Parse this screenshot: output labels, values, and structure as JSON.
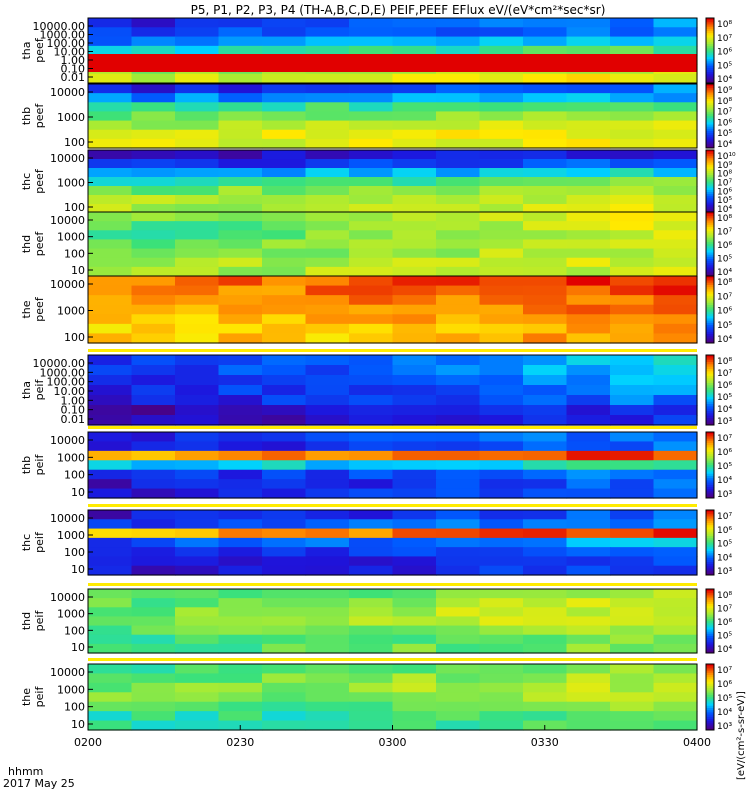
{
  "title": "P5, P1, P2, P3, P4 (TH-A,B,C,D,E) PEIF,PEEF EFlux eV/(eV*cm²*sec*sr)",
  "time_axis": {
    "ticks": [
      "0200",
      "0230",
      "0300",
      "0330",
      "0400"
    ],
    "label_line1": "hhmm",
    "label_line2": "2017 May 25"
  },
  "colorbar_unit": "[eV/(cm²-s-sr-eV)]",
  "chart_data": [
    {
      "type": "heatmap",
      "probe": "tha",
      "species": "peef",
      "ylabel": "tha\npeef",
      "yticks": [
        "10000.00",
        "1000.00",
        "100.00",
        "10.00",
        "1.00",
        "0.10",
        "0.01"
      ],
      "colorbar_ticks": [
        "10⁸",
        "10⁷",
        "10⁶",
        "10⁵",
        "10⁴"
      ],
      "colormap": "rainbow"
    },
    {
      "type": "heatmap",
      "probe": "thb",
      "species": "peef",
      "ylabel": "thb\npeef",
      "yticks": [
        "10000",
        "1000",
        "100"
      ],
      "colorbar_ticks": [
        "10⁹",
        "10⁸",
        "10⁷",
        "10⁶",
        "10⁵",
        "10⁴"
      ],
      "colormap": "rainbow"
    },
    {
      "type": "heatmap",
      "probe": "thc",
      "species": "peef",
      "ylabel": "thc\npeef",
      "yticks": [
        "10000",
        "1000",
        "100"
      ],
      "colorbar_ticks": [
        "10¹⁰",
        "10⁹",
        "10⁸",
        "10⁷",
        "10⁶",
        "10⁵",
        "10⁴"
      ],
      "colormap": "rainbow"
    },
    {
      "type": "heatmap",
      "probe": "thd",
      "species": "peef",
      "ylabel": "thd\npeef",
      "yticks": [
        "10000",
        "1000",
        "100",
        "10"
      ],
      "colorbar_ticks": [
        "10⁸",
        "10⁷",
        "10⁶",
        "10⁵",
        "10⁴"
      ],
      "colormap": "rainbow"
    },
    {
      "type": "heatmap",
      "probe": "the",
      "species": "peef",
      "ylabel": "the\npeef",
      "yticks": [
        "10000",
        "1000",
        "100"
      ],
      "colorbar_ticks": [
        "10⁸",
        "10⁷",
        "10⁶",
        "10⁵",
        "10⁴"
      ],
      "colormap": "rainbow"
    },
    {
      "type": "heatmap",
      "probe": "tha",
      "species": "peif",
      "ylabel": "tha\npeif",
      "yticks": [
        "10000.00",
        "1000.00",
        "100.00",
        "10.00",
        "1.00",
        "0.10",
        "0.01"
      ],
      "colorbar_ticks": [
        "10⁸",
        "10⁷",
        "10⁶",
        "10⁵",
        "10⁴",
        "10³"
      ],
      "colormap": "rainbow"
    },
    {
      "type": "heatmap",
      "probe": "thb",
      "species": "peif",
      "ylabel": "thb\npeif",
      "yticks": [
        "10000",
        "1000",
        "100",
        "10"
      ],
      "colorbar_ticks": [
        "10⁷",
        "10⁶",
        "10⁵",
        "10⁴",
        "10³"
      ],
      "colormap": "rainbow"
    },
    {
      "type": "heatmap",
      "probe": "thc",
      "species": "peif",
      "ylabel": "thc\npeif",
      "yticks": [
        "10000",
        "1000",
        "100",
        "10"
      ],
      "colorbar_ticks": [
        "10⁷",
        "10⁶",
        "10⁵",
        "10⁴",
        "10³"
      ],
      "colormap": "rainbow"
    },
    {
      "type": "heatmap",
      "probe": "thd",
      "species": "peif",
      "ylabel": "thd\npeif",
      "yticks": [
        "10000",
        "1000",
        "100",
        "10"
      ],
      "colorbar_ticks": [
        "10⁸",
        "10⁷",
        "10⁶",
        "10⁵",
        "10⁴"
      ],
      "colormap": "rainbow"
    },
    {
      "type": "heatmap",
      "probe": "the",
      "species": "peif",
      "ylabel": "the\npeif",
      "yticks": [
        "10000",
        "1000",
        "100",
        "10"
      ],
      "colorbar_ticks": [
        "10⁷",
        "10⁶",
        "10⁵",
        "10⁴",
        "10³"
      ],
      "colormap": "rainbow"
    }
  ]
}
